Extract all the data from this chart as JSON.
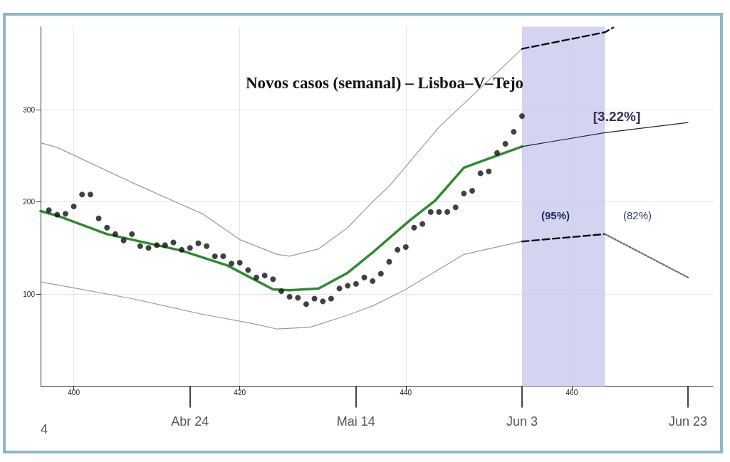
{
  "chart_data": {
    "type": "line",
    "title": "Novos casos (semanal) – Lisboa–V–Tejo",
    "xlim": [
      396,
      477
    ],
    "xticks": [
      400,
      420,
      440,
      460
    ],
    "x2lim": [
      "--04-06",
      "--06-26"
    ],
    "x2ticks": [
      {
        "value": "--04-24",
        "label": "Abr 24"
      },
      {
        "value": "--05-14",
        "label": "Mai 14"
      },
      {
        "value": "--06-03",
        "label": "Jun 3"
      },
      {
        "value": "--06-23",
        "label": "Jun 23"
      }
    ],
    "ylim": [
      0,
      390
    ],
    "yticks": [
      100,
      200,
      300
    ],
    "grid": true,
    "bands": [
      {
        "axis": "x",
        "from": 454,
        "to": 464,
        "color": "#c9c9ee"
      }
    ],
    "annotations": [
      "[3.22%]",
      "(95%)",
      "(82%)",
      "4"
    ],
    "series": [
      {
        "type": "scatter",
        "color": "#111111",
        "marker": "circle",
        "x": [
          397,
          398,
          399,
          400,
          401,
          402,
          403,
          404,
          405,
          406,
          407,
          408,
          409,
          410,
          411,
          412,
          413,
          414,
          415,
          416,
          417,
          418,
          419,
          420,
          421,
          422,
          423,
          424,
          425,
          426,
          427,
          428,
          429,
          430,
          431,
          432,
          433,
          434,
          435,
          436,
          437,
          438,
          439,
          440,
          441,
          442,
          443,
          444,
          445,
          446,
          447,
          448,
          449,
          450,
          451,
          452,
          453,
          454
        ],
        "values": [
          191,
          186,
          187,
          195,
          208,
          208,
          182,
          172,
          165,
          158,
          165,
          152,
          150,
          153,
          153,
          156,
          148,
          150,
          155,
          152,
          141,
          141,
          133,
          134,
          126,
          118,
          120,
          116,
          103,
          97,
          96,
          89,
          95,
          92,
          95,
          106,
          109,
          111,
          118,
          114,
          122,
          135,
          148,
          151,
          172,
          176,
          189,
          189,
          189,
          194,
          209,
          212,
          231,
          233,
          253,
          263,
          276,
          293
        ]
      },
      {
        "color": "#2e8b2e",
        "marker": "none",
        "line_style": "solid",
        "x": [
          396,
          398,
          404,
          413,
          418.5,
          424,
          426,
          429.5,
          433,
          436,
          440.5,
          443.5,
          447,
          448.5,
          454
        ],
        "values": [
          190,
          185,
          165,
          147,
          131,
          105,
          104,
          106,
          123,
          145,
          180,
          201,
          237,
          242,
          260
        ]
      },
      {
        "color": "#1c1f4f",
        "marker": "none",
        "line_style": "solid",
        "x": [
          454,
          464,
          474
        ],
        "values": [
          260,
          275,
          286
        ]
      },
      {
        "type": "line",
        "color": "#9a9a9a",
        "marker": "none",
        "line_style": "solid",
        "x": [
          396,
          398,
          407,
          415.5,
          420,
          424.5,
          426,
          429.5,
          433,
          436,
          438,
          444,
          454
        ],
        "values": [
          264,
          259,
          221,
          187,
          159,
          143,
          141,
          149,
          172,
          200,
          217,
          281,
          366
        ]
      },
      {
        "type": "line",
        "color": "#111111",
        "marker": "none",
        "line_style": "dashed",
        "x": [
          454,
          464,
          465
        ],
        "values": [
          366,
          384,
          389
        ]
      },
      {
        "type": "line",
        "color": "#9a9a9a",
        "marker": "none",
        "line_style": "solid",
        "x": [
          396,
          398,
          407,
          415.5,
          421.5,
          424.5,
          428.5,
          433,
          436,
          440,
          447,
          454
        ],
        "values": [
          113,
          110,
          95,
          78,
          68,
          62,
          64,
          77,
          87,
          105,
          143,
          157
        ]
      },
      {
        "type": "line",
        "color": "#111111",
        "marker": "none",
        "line_style": "dashed",
        "x": [
          454,
          464
        ],
        "values": [
          157,
          165
        ]
      },
      {
        "type": "line",
        "color": "#777777",
        "marker": "none",
        "line_style": "dotted",
        "x": [
          464,
          474
        ],
        "values": [
          165,
          118
        ]
      }
    ]
  }
}
